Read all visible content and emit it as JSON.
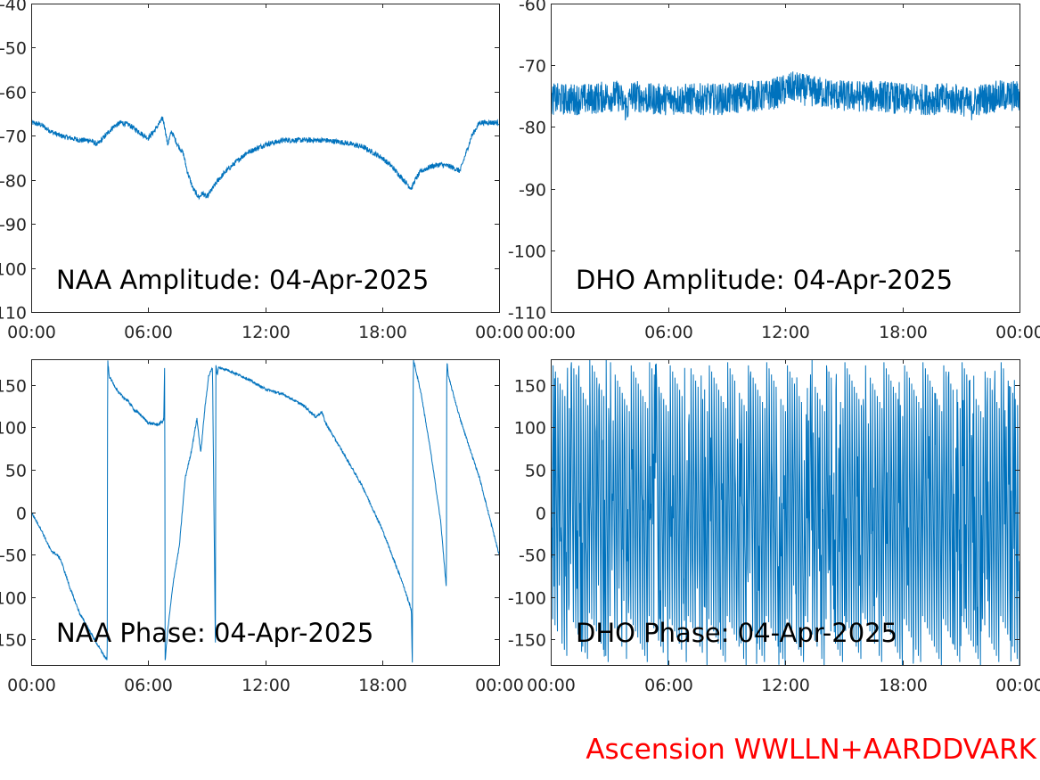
{
  "colors": {
    "line": "#0072bd",
    "axis": "#262626",
    "credit": "#ff0000",
    "background": "#ffffff"
  },
  "credit": "Ascension WWLLN+AARDDVARK",
  "chart_data": [
    {
      "id": "naa-amp",
      "type": "line",
      "title": "NAA Amplitude: 04-Apr-2025",
      "xlabel": "",
      "ylabel": "",
      "xlim": [
        0,
        24
      ],
      "ylim": [
        -110,
        -40
      ],
      "xticks": [
        "00:00",
        "06:00",
        "12:00",
        "18:00",
        "00:00"
      ],
      "yticks": [
        "-40",
        "-50",
        "-60",
        "-70",
        "-80",
        "-90",
        "-100",
        "-110"
      ],
      "grid": false,
      "series": [
        {
          "noise": 0.6,
          "x": [
            0,
            0.5,
            1,
            1.5,
            2,
            2.5,
            3,
            3.4,
            3.8,
            4.2,
            4.6,
            5,
            5.5,
            5.8,
            6,
            6.3,
            6.6,
            6.75,
            6.85,
            7.0,
            7.2,
            7.5,
            7.8,
            8.0,
            8.3,
            8.6,
            8.8,
            9.0,
            9.3,
            9.6,
            10,
            10.5,
            11,
            12,
            13,
            14,
            15,
            16,
            17,
            18,
            18.5,
            19,
            19.3,
            19.5,
            19.7,
            20,
            20.5,
            21,
            21.5,
            22,
            22.3,
            22.6,
            23,
            23.5,
            24
          ],
          "y": [
            -67,
            -67.5,
            -69,
            -70,
            -70.5,
            -71,
            -71,
            -72,
            -70,
            -68,
            -67,
            -67.5,
            -69,
            -70,
            -70.5,
            -69,
            -67,
            -66,
            -68,
            -72,
            -69,
            -72,
            -74,
            -78,
            -82,
            -84,
            -83,
            -84,
            -82,
            -80,
            -78,
            -76,
            -74,
            -72,
            -71,
            -71,
            -71,
            -71.5,
            -72.5,
            -75,
            -77,
            -79.5,
            -81,
            -82,
            -80,
            -78,
            -77,
            -76.5,
            -77,
            -78,
            -74,
            -70,
            -67,
            -67,
            -67
          ]
        }
      ]
    },
    {
      "id": "dho-amp",
      "type": "line",
      "title": "DHO Amplitude: 04-Apr-2025",
      "xlabel": "",
      "ylabel": "",
      "xlim": [
        0,
        24
      ],
      "ylim": [
        -110,
        -60
      ],
      "xticks": [
        "00:00",
        "06:00",
        "12:00",
        "18:00",
        "00:00"
      ],
      "yticks": [
        "-60",
        "-70",
        "-80",
        "-90",
        "-100",
        "-110"
      ],
      "grid": false,
      "series": [
        {
          "noise": 2.6,
          "x": [
            0,
            1,
            2,
            3,
            3.5,
            3.9,
            4.1,
            4.4,
            5,
            6,
            7,
            8,
            9,
            10,
            11,
            12,
            12.5,
            13,
            14,
            15,
            16,
            17,
            18,
            19,
            20,
            21,
            21.5,
            22,
            23,
            24
          ],
          "y": [
            -75.5,
            -75.5,
            -75.5,
            -75,
            -75,
            -77,
            -75,
            -75,
            -75.5,
            -75.5,
            -75.5,
            -75.5,
            -75.5,
            -75,
            -75,
            -74,
            -73.5,
            -74,
            -74.5,
            -75,
            -75,
            -75,
            -75.5,
            -75.5,
            -75.5,
            -75.5,
            -76.5,
            -75.5,
            -75,
            -75
          ]
        }
      ]
    },
    {
      "id": "naa-phase",
      "type": "line",
      "title": "NAA Phase: 04-Apr-2025",
      "xlabel": "",
      "ylabel": "",
      "xlim": [
        0,
        24
      ],
      "ylim": [
        -180,
        180
      ],
      "xticks": [
        "00:00",
        "06:00",
        "12:00",
        "18:00",
        "00:00"
      ],
      "yticks": [
        "150",
        "100",
        "50",
        "0",
        "-50",
        "-100",
        "-150"
      ],
      "grid": false,
      "series": [
        {
          "noise": 1.5,
          "x": [
            0,
            0.5,
            1,
            1.3,
            1.5,
            2,
            2.5,
            3,
            3.5,
            3.9,
            3.92,
            4.0,
            4.5,
            5,
            5.3,
            5.6,
            6,
            6.5,
            6.8,
            6.85,
            6.87,
            7.0,
            7.3,
            7.6,
            7.9,
            8.2,
            8.5,
            8.7,
            8.9,
            9.1,
            9.3,
            9.45,
            9.47,
            9.55,
            9.6,
            10,
            11,
            12,
            13,
            14,
            14.6,
            14.9,
            15.1,
            16,
            17,
            18,
            19,
            19.5,
            19.55,
            19.6,
            20,
            20.5,
            21,
            21.3,
            21.32,
            21.4,
            22,
            23,
            24
          ],
          "y": [
            0,
            -20,
            -45,
            -50,
            -55,
            -90,
            -120,
            -140,
            -160,
            -175,
            180,
            160,
            140,
            130,
            120,
            115,
            105,
            103,
            108,
            180,
            -175,
            -140,
            -80,
            -40,
            40,
            70,
            110,
            70,
            120,
            160,
            170,
            -160,
            175,
            160,
            170,
            168,
            158,
            145,
            138,
            125,
            112,
            118,
            105,
            70,
            30,
            -20,
            -80,
            -115,
            -180,
            180,
            140,
            70,
            -10,
            -90,
            180,
            160,
            110,
            40,
            -50
          ]
        }
      ]
    },
    {
      "id": "dho-phase",
      "type": "line",
      "title": "DHO Phase: 04-Apr-2025",
      "xlabel": "",
      "ylabel": "",
      "xlim": [
        0,
        24
      ],
      "ylim": [
        -180,
        180
      ],
      "xticks": [
        "00:00",
        "06:00",
        "12:00",
        "18:00",
        "00:00"
      ],
      "yticks": [
        "150",
        "100",
        "50",
        "0",
        "-50",
        "-100",
        "-150"
      ],
      "grid": false,
      "series": [
        {
          "sawtooth_cycles_per_hour": 8.5,
          "range": [
            -180,
            180
          ],
          "x": [
            0,
            24
          ]
        }
      ]
    }
  ]
}
